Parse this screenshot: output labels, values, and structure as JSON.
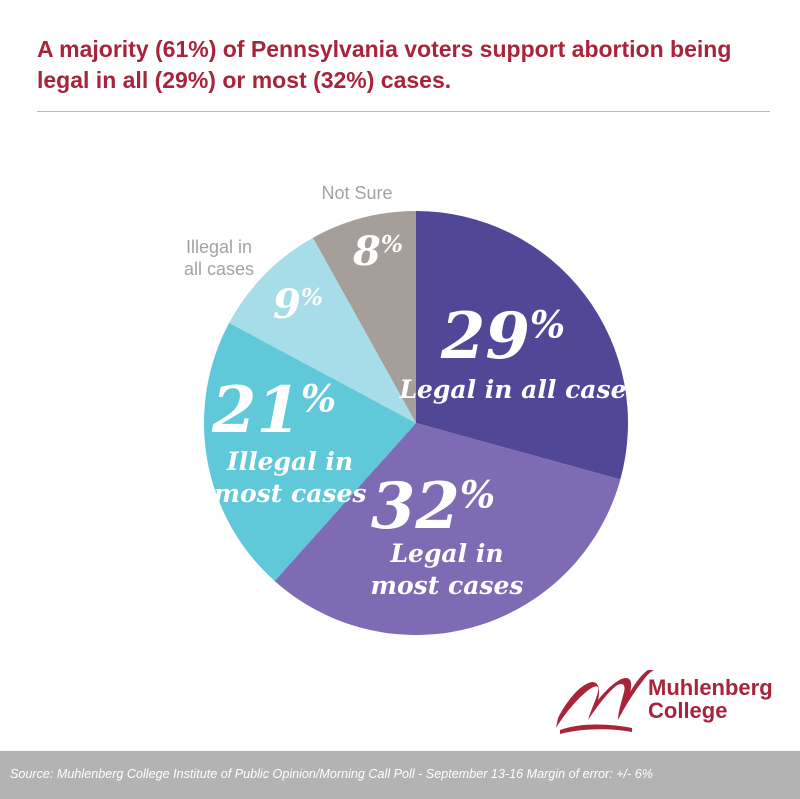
{
  "title": "A majority (61%) of Pennsylvania voters support abortion being legal in all (29%) or most (32%) cases.",
  "chart_data": {
    "type": "pie",
    "start_angle": 0,
    "direction": "clockwise",
    "slices": [
      {
        "label": [
          "Legal in all cases"
        ],
        "value": 29,
        "value_text": "29%",
        "color": "#504796",
        "text_color": "#ffffff"
      },
      {
        "label": [
          "Legal in",
          "most cases"
        ],
        "value": 32,
        "value_text": "32%",
        "color": "#7e6bb3",
        "text_color": "#ffffff"
      },
      {
        "label": [
          "Illegal in",
          "most cases"
        ],
        "value": 21,
        "value_text": "21%",
        "color": "#5fc8d9",
        "text_color": "#ffffff"
      },
      {
        "label": [
          "Illegal in",
          "all cases"
        ],
        "value": 9,
        "value_text": "9%",
        "color": "#a6dde8",
        "text_color": "#ffffff",
        "outer_label_color": "#a3a3a3"
      },
      {
        "label": [
          "Not Sure"
        ],
        "value": 8,
        "value_text": "8%",
        "color": "#a69e99",
        "text_color": "#ffffff",
        "outer_label_color": "#a3a3a3"
      }
    ]
  },
  "logo": {
    "name": "Muhlenberg",
    "name2": "College",
    "color": "#a8243a"
  },
  "footer": {
    "source": "Source: Muhlenberg College Institute of Public Opinion/Morning Call Poll - September 13-16  Margin of error: +/- 6%"
  }
}
